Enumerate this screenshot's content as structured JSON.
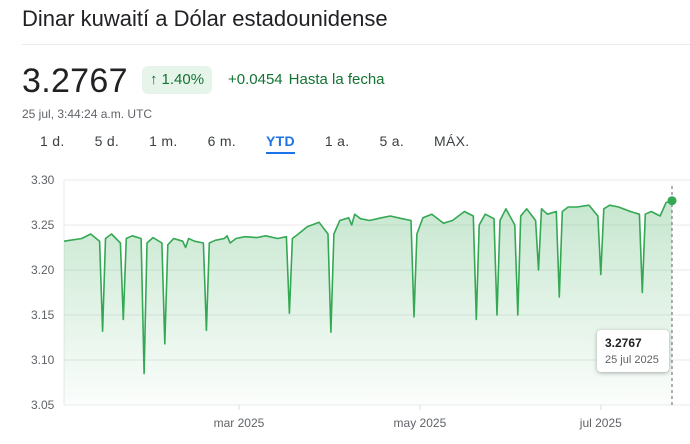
{
  "header": {
    "title": "Dinar kuwaití a Dólar estadounidense"
  },
  "quote": {
    "price": "3.2767",
    "percent_change": "1.40%",
    "arrow_icon": "arrow-up-icon",
    "absolute_change": "+0.0454",
    "period_label": "Hasta la fecha",
    "timestamp": "25 jul, 3:44:24 a.m. UTC"
  },
  "tabs": [
    {
      "label": "1 d."
    },
    {
      "label": "5 d."
    },
    {
      "label": "1 m."
    },
    {
      "label": "6 m."
    },
    {
      "label": "YTD",
      "active": true
    },
    {
      "label": "1 a."
    },
    {
      "label": "5 a."
    },
    {
      "label": "MÁX."
    }
  ],
  "tooltip": {
    "value": "3.2767",
    "date": "25 jul 2025"
  },
  "colors": {
    "line": "#34a853",
    "positive_text": "#137333",
    "badge_bg": "#e6f4ea",
    "tab_active": "#1a73e8"
  },
  "chart_data": {
    "type": "area",
    "title": "",
    "xlabel": "",
    "ylabel": "",
    "ylim": [
      3.05,
      3.3
    ],
    "yticks": [
      3.3,
      3.25,
      3.2,
      3.15,
      3.1,
      3.05
    ],
    "ytick_labels": [
      "3.30",
      "3.25",
      "3.20",
      "3.15",
      "3.10",
      "3.05"
    ],
    "xlim": [
      "2025-01-01",
      "2025-07-25"
    ],
    "xticks": [
      {
        "date": "2025-03-01",
        "label": "mar 2025"
      },
      {
        "date": "2025-05-01",
        "label": "may 2025"
      },
      {
        "date": "2025-07-01",
        "label": "jul 2025"
      }
    ],
    "grid": true,
    "series": [
      {
        "x": [
          "2025-01-01",
          "2025-01-03",
          "2025-01-07",
          "2025-01-10",
          "2025-01-13",
          "2025-01-14",
          "2025-01-15",
          "2025-01-17",
          "2025-01-20",
          "2025-01-21",
          "2025-01-22",
          "2025-01-24",
          "2025-01-27",
          "2025-01-28",
          "2025-01-29",
          "2025-01-31",
          "2025-02-03",
          "2025-02-04",
          "2025-02-05",
          "2025-02-07",
          "2025-02-10",
          "2025-02-11",
          "2025-02-12",
          "2025-02-14",
          "2025-02-17",
          "2025-02-18",
          "2025-02-19",
          "2025-02-21",
          "2025-02-24",
          "2025-02-25",
          "2025-02-26",
          "2025-02-28",
          "2025-03-03",
          "2025-03-07",
          "2025-03-10",
          "2025-03-14",
          "2025-03-17",
          "2025-03-18",
          "2025-03-19",
          "2025-03-21",
          "2025-03-24",
          "2025-03-28",
          "2025-03-31",
          "2025-04-01",
          "2025-04-02",
          "2025-04-04",
          "2025-04-07",
          "2025-04-08",
          "2025-04-09",
          "2025-04-11",
          "2025-04-14",
          "2025-04-18",
          "2025-04-21",
          "2025-04-25",
          "2025-04-28",
          "2025-04-29",
          "2025-04-30",
          "2025-05-02",
          "2025-05-05",
          "2025-05-09",
          "2025-05-12",
          "2025-05-16",
          "2025-05-19",
          "2025-05-20",
          "2025-05-21",
          "2025-05-23",
          "2025-05-26",
          "2025-05-27",
          "2025-05-28",
          "2025-05-30",
          "2025-06-02",
          "2025-06-03",
          "2025-06-04",
          "2025-06-06",
          "2025-06-09",
          "2025-06-10",
          "2025-06-11",
          "2025-06-13",
          "2025-06-16",
          "2025-06-17",
          "2025-06-18",
          "2025-06-20",
          "2025-06-23",
          "2025-06-27",
          "2025-06-30",
          "2025-07-01",
          "2025-07-02",
          "2025-07-04",
          "2025-07-07",
          "2025-07-11",
          "2025-07-14",
          "2025-07-15",
          "2025-07-16",
          "2025-07-18",
          "2025-07-21",
          "2025-07-23",
          "2025-07-25"
        ],
        "y": [
          3.232,
          3.233,
          3.235,
          3.24,
          3.232,
          3.132,
          3.235,
          3.24,
          3.23,
          3.145,
          3.235,
          3.238,
          3.235,
          3.085,
          3.23,
          3.236,
          3.23,
          3.118,
          3.228,
          3.235,
          3.232,
          3.225,
          3.235,
          3.232,
          3.23,
          3.133,
          3.23,
          3.233,
          3.235,
          3.238,
          3.23,
          3.235,
          3.237,
          3.236,
          3.238,
          3.235,
          3.237,
          3.152,
          3.235,
          3.24,
          3.248,
          3.253,
          3.24,
          3.131,
          3.24,
          3.255,
          3.258,
          3.25,
          3.262,
          3.257,
          3.255,
          3.258,
          3.26,
          3.257,
          3.255,
          3.148,
          3.24,
          3.258,
          3.262,
          3.252,
          3.255,
          3.265,
          3.26,
          3.145,
          3.25,
          3.262,
          3.257,
          3.15,
          3.255,
          3.268,
          3.25,
          3.15,
          3.26,
          3.268,
          3.255,
          3.2,
          3.268,
          3.262,
          3.265,
          3.17,
          3.265,
          3.27,
          3.27,
          3.272,
          3.26,
          3.195,
          3.268,
          3.272,
          3.27,
          3.265,
          3.262,
          3.175,
          3.262,
          3.265,
          3.26,
          3.275,
          3.277
        ]
      }
    ]
  }
}
